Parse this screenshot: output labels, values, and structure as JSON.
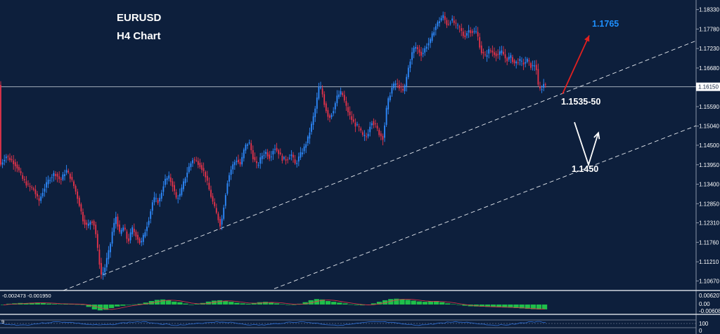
{
  "chart_data": {
    "type": "candlestick",
    "symbol": "EURUSD",
    "timeframe_label": "H4 Chart",
    "title": "EURUSD",
    "subtitle": "H4 Chart",
    "price_axis": {
      "range": [
        1.104,
        1.186
      ],
      "ticks": [
        "1.18330",
        "1.17780",
        "1.17230",
        "1.16680",
        "1.16150",
        "1.15590",
        "1.15040",
        "1.14500",
        "1.13950",
        "1.13400",
        "1.12850",
        "1.12310",
        "1.11760",
        "1.11210",
        "1.10670"
      ],
      "current_price_label": "1.16150",
      "current_price": 1.1615
    },
    "price_path": [
      [
        0,
        1.1392
      ],
      [
        8,
        1.142
      ],
      [
        18,
        1.1405
      ],
      [
        24,
        1.139
      ],
      [
        32,
        1.1355
      ],
      [
        40,
        1.1335
      ],
      [
        48,
        1.1325
      ],
      [
        55,
        1.129
      ],
      [
        62,
        1.1325
      ],
      [
        70,
        1.1355
      ],
      [
        78,
        1.1372
      ],
      [
        86,
        1.135
      ],
      [
        94,
        1.138
      ],
      [
        100,
        1.136
      ],
      [
        106,
        1.133
      ],
      [
        112,
        1.129
      ],
      [
        118,
        1.124
      ],
      [
        124,
        1.122
      ],
      [
        130,
        1.124
      ],
      [
        135,
        1.122
      ],
      [
        140,
        1.1135
      ],
      [
        144,
        1.1085
      ],
      [
        148,
        1.1095
      ],
      [
        152,
        1.113
      ],
      [
        156,
        1.116
      ],
      [
        160,
        1.121
      ],
      [
        165,
        1.125
      ],
      [
        170,
        1.12
      ],
      [
        176,
        1.122
      ],
      [
        182,
        1.1175
      ],
      [
        188,
        1.1215
      ],
      [
        194,
        1.1195
      ],
      [
        200,
        1.117
      ],
      [
        206,
        1.1205
      ],
      [
        212,
        1.1245
      ],
      [
        218,
        1.13
      ],
      [
        226,
        1.129
      ],
      [
        234,
        1.135
      ],
      [
        240,
        1.136
      ],
      [
        246,
        1.1335
      ],
      [
        250,
        1.13
      ],
      [
        256,
        1.131
      ],
      [
        262,
        1.135
      ],
      [
        268,
        1.1385
      ],
      [
        274,
        1.141
      ],
      [
        280,
        1.1405
      ],
      [
        286,
        1.139
      ],
      [
        292,
        1.1365
      ],
      [
        298,
        1.132
      ],
      [
        304,
        1.128
      ],
      [
        309,
        1.125
      ],
      [
        314,
        1.122
      ],
      [
        319,
        1.129
      ],
      [
        324,
        1.1355
      ],
      [
        330,
        1.139
      ],
      [
        336,
        1.141
      ],
      [
        342,
        1.1395
      ],
      [
        348,
        1.1445
      ],
      [
        354,
        1.146
      ],
      [
        360,
        1.1415
      ],
      [
        366,
        1.139
      ],
      [
        372,
        1.142
      ],
      [
        378,
        1.143
      ],
      [
        384,
        1.1415
      ],
      [
        390,
        1.1445
      ],
      [
        396,
        1.143
      ],
      [
        402,
        1.141
      ],
      [
        408,
        1.141
      ],
      [
        414,
        1.1425
      ],
      [
        420,
        1.1395
      ],
      [
        426,
        1.142
      ],
      [
        432,
        1.144
      ],
      [
        438,
        1.147
      ],
      [
        444,
        1.1515
      ],
      [
        449,
        1.156
      ],
      [
        454,
        1.162
      ],
      [
        458,
        1.16
      ],
      [
        462,
        1.156
      ],
      [
        468,
        1.1525
      ],
      [
        474,
        1.155
      ],
      [
        480,
        1.159
      ],
      [
        486,
        1.16
      ],
      [
        492,
        1.156
      ],
      [
        498,
        1.153
      ],
      [
        504,
        1.151
      ],
      [
        510,
        1.15
      ],
      [
        516,
        1.1475
      ],
      [
        522,
        1.1475
      ],
      [
        528,
        1.152
      ],
      [
        534,
        1.1505
      ],
      [
        540,
        1.148
      ],
      [
        545,
        1.147
      ],
      [
        549,
        1.1545
      ],
      [
        553,
        1.1585
      ],
      [
        558,
        1.1615
      ],
      [
        563,
        1.1625
      ],
      [
        568,
        1.1615
      ],
      [
        574,
        1.16
      ],
      [
        578,
        1.164
      ],
      [
        582,
        1.168
      ],
      [
        586,
        1.171
      ],
      [
        590,
        1.173
      ],
      [
        594,
        1.172
      ],
      [
        600,
        1.1705
      ],
      [
        606,
        1.173
      ],
      [
        612,
        1.1745
      ],
      [
        618,
        1.178
      ],
      [
        624,
        1.18
      ],
      [
        630,
        1.1815
      ],
      [
        636,
        1.179
      ],
      [
        642,
        1.1805
      ],
      [
        648,
        1.179
      ],
      [
        654,
        1.178
      ],
      [
        660,
        1.1755
      ],
      [
        666,
        1.1775
      ],
      [
        672,
        1.177
      ],
      [
        678,
        1.177
      ],
      [
        684,
        1.1715
      ],
      [
        690,
        1.17
      ],
      [
        696,
        1.172
      ],
      [
        702,
        1.171
      ],
      [
        708,
        1.1705
      ],
      [
        714,
        1.1715
      ],
      [
        720,
        1.169
      ],
      [
        726,
        1.17
      ],
      [
        732,
        1.168
      ],
      [
        738,
        1.169
      ],
      [
        744,
        1.168
      ],
      [
        750,
        1.169
      ],
      [
        756,
        1.167
      ],
      [
        762,
        1.168
      ],
      [
        766,
        1.1605
      ],
      [
        770,
        1.161
      ],
      [
        774,
        1.1625
      ],
      [
        778,
        1.162
      ]
    ],
    "trendlines": [
      {
        "name": "upper-support",
        "from": [
          90,
          1.104
        ],
        "to": [
          990,
          1.1745
        ],
        "style": "dashed"
      },
      {
        "name": "lower-support",
        "from": [
          390,
          1.1045
        ],
        "to": [
          990,
          1.1505
        ],
        "style": "dashed"
      }
    ],
    "annotations": [
      {
        "name": "target-label",
        "text": "1.1765",
        "color": "#1e90ff",
        "at": [
          842,
          1.1785
        ]
      },
      {
        "name": "support-label",
        "text": "1.1535-50",
        "color": "#ffffff",
        "at": [
          798,
          1.1565
        ]
      },
      {
        "name": "deep-support-label",
        "text": "1.1450",
        "color": "#ffffff",
        "at": [
          813,
          1.1375
        ]
      }
    ],
    "arrows": [
      {
        "name": "red-up-arrow",
        "color": "#e02020",
        "points": [
          [
            800,
            1.1595
          ],
          [
            838,
            1.176
          ]
        ]
      },
      {
        "name": "white-v-arrow",
        "color": "#ffffff",
        "points": [
          [
            817,
            1.1515
          ],
          [
            837,
            1.1395
          ],
          [
            851,
            1.1485
          ]
        ]
      }
    ],
    "indicator1": {
      "label": "-0.002473 -0.001950",
      "ticks": [
        "0.006207",
        "0.00",
        "-0.006087"
      ],
      "values": [
        -0.0002,
        0.0004,
        0.0006,
        0.0008,
        0.0007,
        0.0009,
        0.001,
        0.0008,
        0.0005,
        0.0003,
        0.0002,
        0.0004,
        0.0003,
        0.0001,
        -0.0002,
        -0.0012,
        -0.0025,
        -0.003,
        -0.0027,
        -0.0018,
        -0.001,
        -0.0006,
        -0.0002,
        0.0001,
        0.0004,
        0.001,
        0.0018,
        0.0024,
        0.0026,
        0.0022,
        0.0015,
        0.0012,
        0.0005,
        -0.0002,
        0.0003,
        0.0008,
        0.0015,
        0.002,
        0.0022,
        0.0018,
        0.0014,
        0.0009,
        0.0006,
        0.0004,
        0.0008,
        0.0012,
        0.0014,
        0.001,
        0.0006,
        0.0002,
        0.0,
        -0.0002,
        0.0004,
        0.0012,
        0.0022,
        0.0028,
        0.0026,
        0.0018,
        0.0014,
        0.001,
        0.0006,
        0.0001,
        -0.0003,
        -0.0004,
        -0.0002,
        0.0006,
        0.0014,
        0.0022,
        0.0028,
        0.003,
        0.0028,
        0.0024,
        0.002,
        0.0016,
        0.0014,
        0.0016,
        0.0018,
        0.0012,
        0.0006,
        0.0002,
        -0.0002,
        -0.0006,
        -0.0009,
        -0.001,
        -0.0011,
        -0.0012,
        -0.0013,
        -0.0014,
        -0.0015,
        -0.0016,
        -0.0018,
        -0.002,
        -0.0022,
        -0.0024,
        -0.0025,
        -0.0025
      ]
    },
    "indicator2": {
      "label": "9",
      "ticks": [
        "100",
        "0"
      ]
    }
  }
}
